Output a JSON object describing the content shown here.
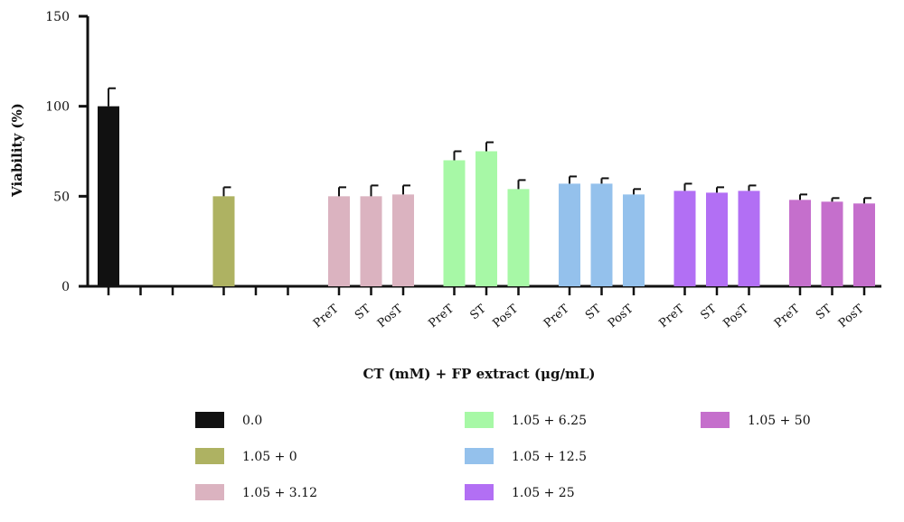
{
  "chart_data": {
    "type": "bar",
    "ylabel": "Viability (%)",
    "xlabel": "CT (mM) + FP extract (μg/mL)",
    "ylim": [
      0,
      150
    ],
    "yticks": [
      0,
      50,
      100,
      150
    ],
    "grid": false,
    "legend_placement": "bottom",
    "groups": [
      {
        "name": "0.0",
        "color": "#111111",
        "bars": [
          {
            "label": "",
            "value": 100,
            "error": 10
          },
          {
            "label": "",
            "value": 0,
            "error": 0
          },
          {
            "label": "",
            "value": 0,
            "error": 0
          }
        ]
      },
      {
        "name": "1.05 + 0",
        "color": "#aeb262",
        "bars": [
          {
            "label": "",
            "value": 50,
            "error": 5
          },
          {
            "label": "",
            "value": 0,
            "error": 0
          },
          {
            "label": "",
            "value": 0,
            "error": 0
          }
        ]
      },
      {
        "name": "1.05 + 3.12",
        "color": "#dbb3c0",
        "bars": [
          {
            "label": "PreT",
            "value": 50,
            "error": 5
          },
          {
            "label": "ST",
            "value": 50,
            "error": 6
          },
          {
            "label": "PosT",
            "value": 51,
            "error": 5
          }
        ]
      },
      {
        "name": "1.05 + 6.25",
        "color": "#a7f8a6",
        "bars": [
          {
            "label": "PreT",
            "value": 70,
            "error": 5
          },
          {
            "label": "ST",
            "value": 75,
            "error": 5
          },
          {
            "label": "PosT",
            "value": 54,
            "error": 5
          }
        ]
      },
      {
        "name": "1.05 + 12.5",
        "color": "#94c1ec",
        "bars": [
          {
            "label": "PreT",
            "value": 57,
            "error": 4
          },
          {
            "label": "ST",
            "value": 57,
            "error": 3
          },
          {
            "label": "PosT",
            "value": 51,
            "error": 3
          }
        ]
      },
      {
        "name": "1.05 + 25",
        "color": "#b26ff4",
        "bars": [
          {
            "label": "PreT",
            "value": 53,
            "error": 4
          },
          {
            "label": "ST",
            "value": 52,
            "error": 3
          },
          {
            "label": "PosT",
            "value": 53,
            "error": 3
          }
        ]
      },
      {
        "name": "1.05 + 50",
        "color": "#c56fcc",
        "bars": [
          {
            "label": "PreT",
            "value": 48,
            "error": 3
          },
          {
            "label": "ST",
            "value": 47,
            "error": 2
          },
          {
            "label": "PosT",
            "value": 46,
            "error": 3
          }
        ]
      }
    ]
  }
}
